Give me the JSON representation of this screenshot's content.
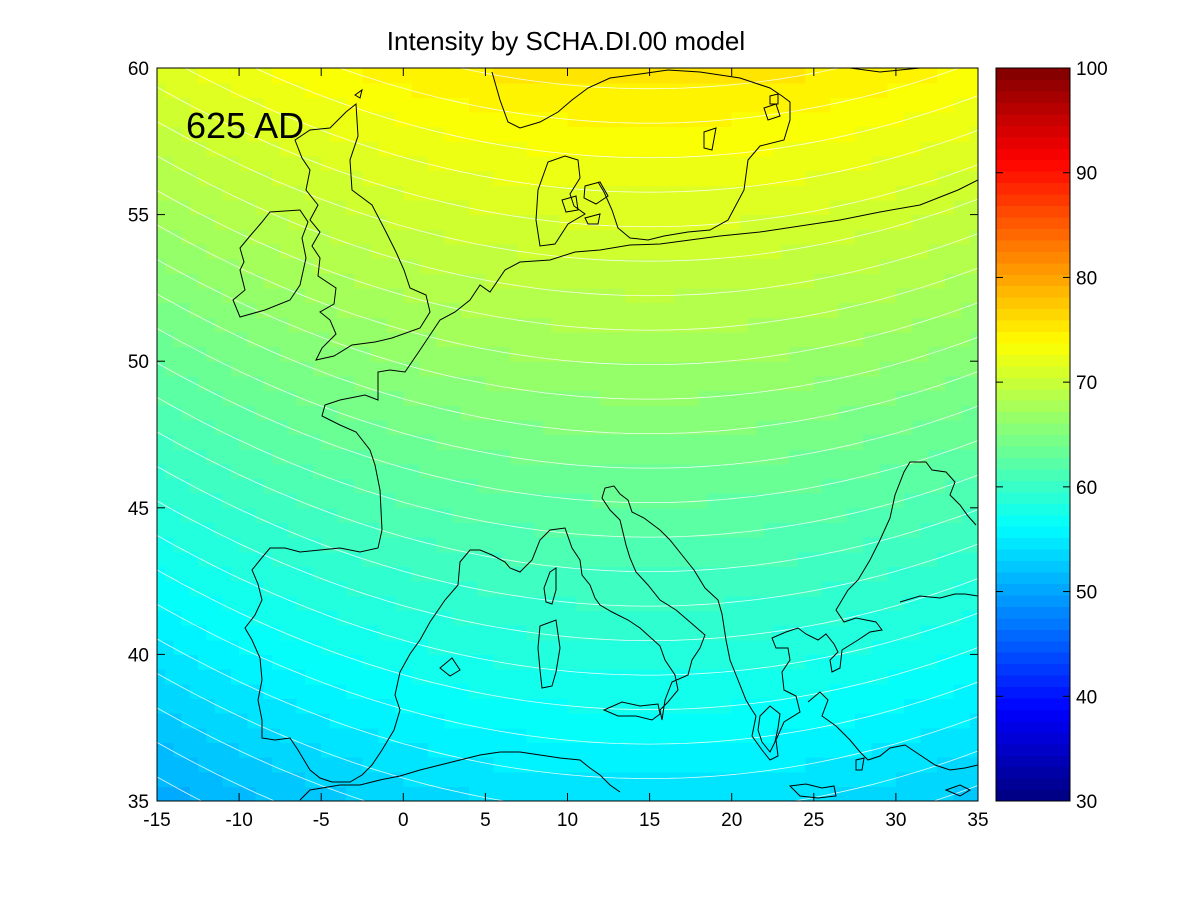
{
  "title": "Intensity by SCHA.DI.00 model",
  "epoch_label": "625 AD",
  "chart_data": {
    "type": "heatmap",
    "title": "Intensity by SCHA.DI.00 model",
    "annotation": "625 AD",
    "xlim": [
      -15,
      35
    ],
    "ylim": [
      35,
      60
    ],
    "x_ticks": [
      -15,
      -10,
      -5,
      0,
      5,
      10,
      15,
      20,
      25,
      30,
      35
    ],
    "y_ticks": [
      35,
      40,
      45,
      50,
      55,
      60
    ],
    "colorbar": {
      "colormap": "jet",
      "clim": [
        30,
        100
      ],
      "ticks": [
        30,
        40,
        50,
        60,
        70,
        80,
        90,
        100
      ]
    },
    "approx_values": [
      {
        "lon": -10,
        "lat": 59,
        "intensity": 76
      },
      {
        "lon": 10,
        "lat": 60,
        "intensity": 79
      },
      {
        "lon": 10,
        "lat": 55,
        "intensity": 75
      },
      {
        "lon": 15,
        "lat": 52,
        "intensity": 72
      },
      {
        "lon": 15,
        "lat": 48,
        "intensity": 68
      },
      {
        "lon": -5,
        "lat": 45,
        "intensity": 64
      },
      {
        "lon": 15,
        "lat": 44,
        "intensity": 64
      },
      {
        "lon": 15,
        "lat": 39,
        "intensity": 60
      },
      {
        "lon": 15,
        "lat": 36,
        "intensity": 57
      },
      {
        "lon": -5,
        "lat": 40,
        "intensity": 59
      },
      {
        "lon": -13,
        "lat": 35,
        "intensity": 52
      },
      {
        "lon": 33,
        "lat": 36,
        "intensity": 55
      }
    ],
    "contour_interval": 1,
    "overlay": "coastlines"
  }
}
